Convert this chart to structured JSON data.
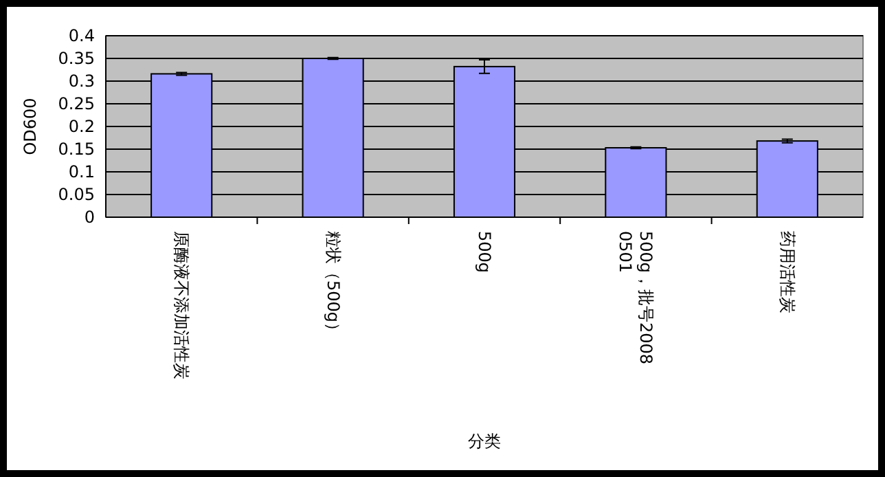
{
  "chart_data": {
    "type": "bar",
    "xlabel": "分类",
    "ylabel": "OD600",
    "categories": [
      "原酶液不添加活性炭",
      "粒状（500g）",
      "500g",
      "500g，批号20080501",
      "药用活性炭"
    ],
    "values": [
      0.316,
      0.35,
      0.332,
      0.153,
      0.168
    ],
    "errors": [
      0.003,
      0.002,
      0.015,
      0.002,
      0.004
    ],
    "color": "#9999ff",
    "ylim": [
      0,
      0.4
    ],
    "yticks": [
      {
        "value": 0,
        "label": "0"
      },
      {
        "value": 0.05,
        "label": "0.05"
      },
      {
        "value": 0.1,
        "label": "0.1"
      },
      {
        "value": 0.15,
        "label": "0.15"
      },
      {
        "value": 0.2,
        "label": "0.2"
      },
      {
        "value": 0.25,
        "label": "0.25"
      },
      {
        "value": 0.3,
        "label": "0.3"
      },
      {
        "value": 0.35,
        "label": "0.35"
      },
      {
        "value": 0.4,
        "label": "0.4"
      }
    ],
    "grid": "y"
  }
}
